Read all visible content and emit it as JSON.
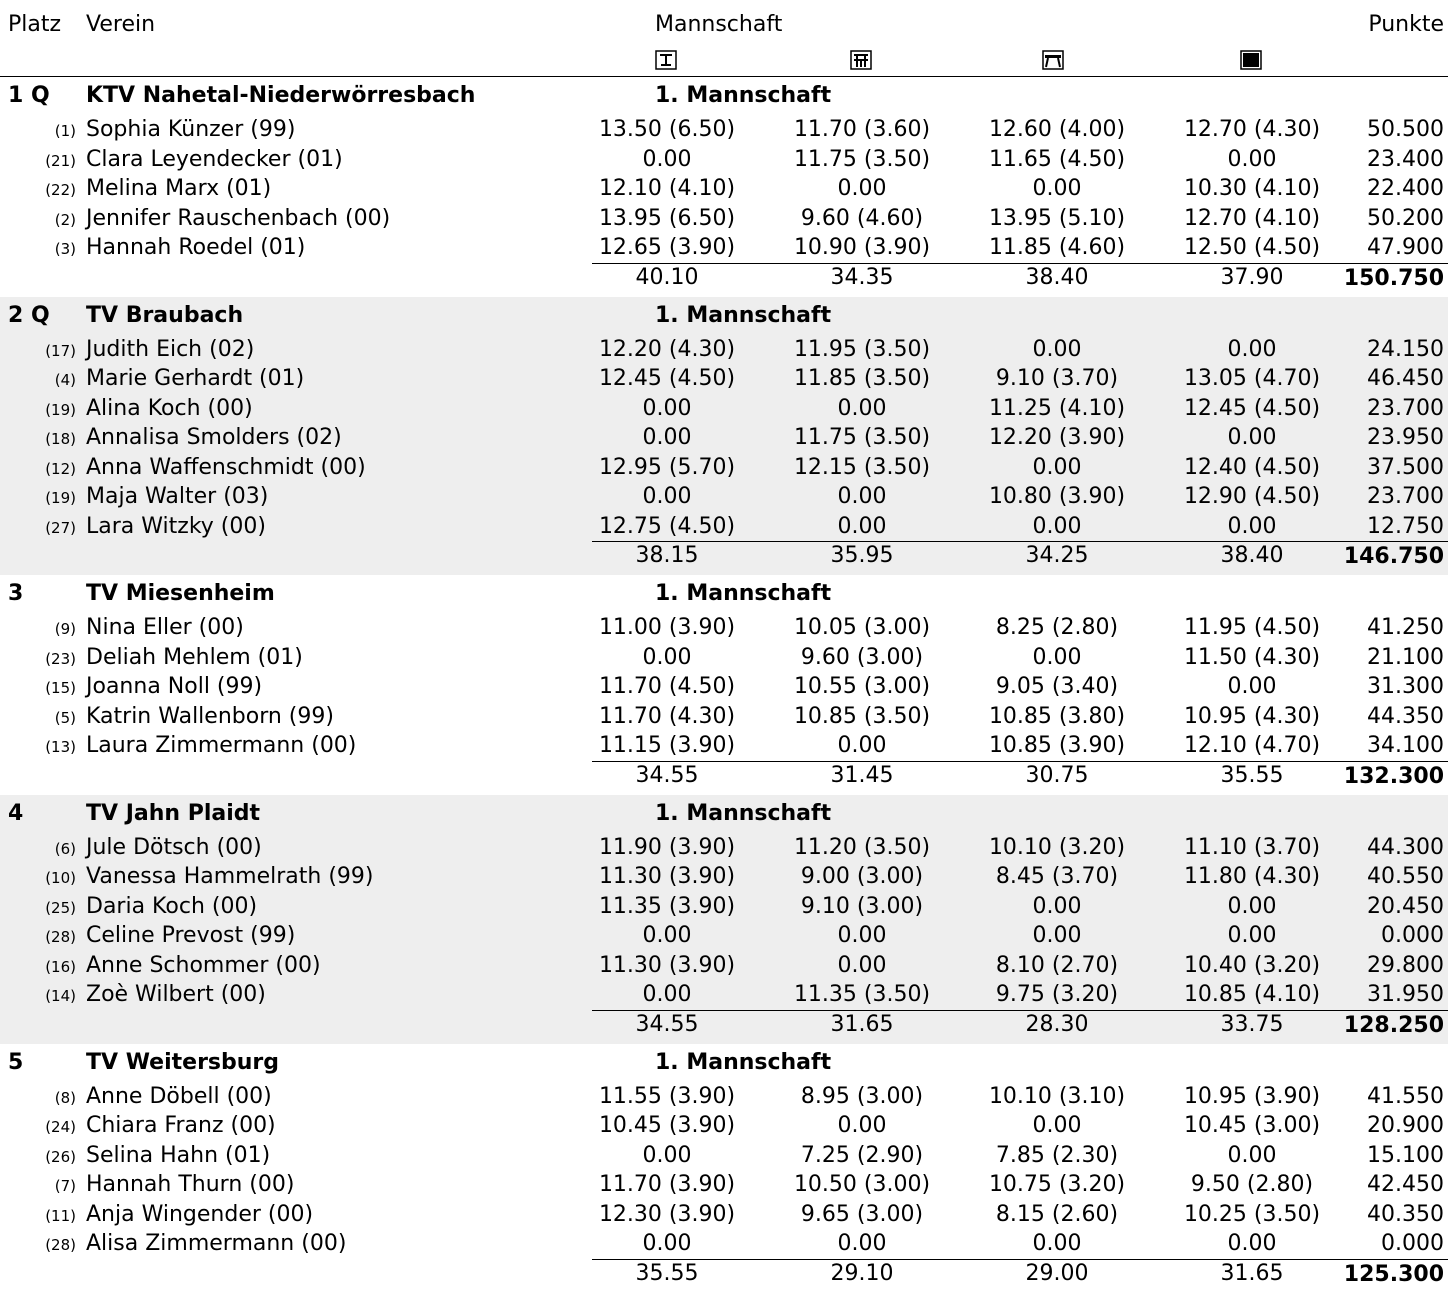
{
  "header": {
    "platz": "Platz",
    "verein": "Verein",
    "mannschaft": "Mannschaft",
    "punkte": "Punkte",
    "apparatus_icons": [
      "vault-icon",
      "uneven-bars-icon",
      "balance-beam-icon",
      "floor-exercise-icon"
    ]
  },
  "teams": [
    {
      "rank": "1 Q",
      "club": "KTV Nahetal-Niederwörresbach",
      "squad": "1. Mannschaft",
      "gymnasts": [
        {
          "num": "(1)",
          "name": "Sophia Künzer (99)",
          "scores": [
            "13.50 (6.50)",
            "11.70 (3.60)",
            "12.60 (4.00)",
            "12.70 (4.30)"
          ],
          "total": "50.500"
        },
        {
          "num": "(21)",
          "name": "Clara Leyendecker (01)",
          "scores": [
            "0.00",
            "11.75 (3.50)",
            "11.65 (4.50)",
            "0.00"
          ],
          "total": "23.400"
        },
        {
          "num": "(22)",
          "name": "Melina Marx (01)",
          "scores": [
            "12.10 (4.10)",
            "0.00",
            "0.00",
            "10.30 (4.10)"
          ],
          "total": "22.400"
        },
        {
          "num": "(2)",
          "name": "Jennifer Rauschenbach (00)",
          "scores": [
            "13.95 (6.50)",
            "9.60 (4.60)",
            "13.95 (5.10)",
            "12.70 (4.10)"
          ],
          "total": "50.200"
        },
        {
          "num": "(3)",
          "name": "Hannah Roedel (01)",
          "scores": [
            "12.65 (3.90)",
            "10.90 (3.90)",
            "11.85 (4.60)",
            "12.50 (4.50)"
          ],
          "total": "47.900"
        }
      ],
      "apparatus_totals": [
        "40.10",
        "34.35",
        "38.40",
        "37.90"
      ],
      "grand_total": "150.750"
    },
    {
      "rank": "2 Q",
      "club": "TV Braubach",
      "squad": "1. Mannschaft",
      "gymnasts": [
        {
          "num": "(17)",
          "name": "Judith Eich (02)",
          "scores": [
            "12.20 (4.30)",
            "11.95 (3.50)",
            "0.00",
            "0.00"
          ],
          "total": "24.150"
        },
        {
          "num": "(4)",
          "name": "Marie Gerhardt (01)",
          "scores": [
            "12.45 (4.50)",
            "11.85 (3.50)",
            "9.10 (3.70)",
            "13.05 (4.70)"
          ],
          "total": "46.450"
        },
        {
          "num": "(19)",
          "name": "Alina Koch (00)",
          "scores": [
            "0.00",
            "0.00",
            "11.25 (4.10)",
            "12.45 (4.50)"
          ],
          "total": "23.700"
        },
        {
          "num": "(18)",
          "name": "Annalisa Smolders (02)",
          "scores": [
            "0.00",
            "11.75 (3.50)",
            "12.20 (3.90)",
            "0.00"
          ],
          "total": "23.950"
        },
        {
          "num": "(12)",
          "name": "Anna Waffenschmidt (00)",
          "scores": [
            "12.95 (5.70)",
            "12.15 (3.50)",
            "0.00",
            "12.40 (4.50)"
          ],
          "total": "37.500"
        },
        {
          "num": "(19)",
          "name": "Maja Walter (03)",
          "scores": [
            "0.00",
            "0.00",
            "10.80 (3.90)",
            "12.90 (4.50)"
          ],
          "total": "23.700"
        },
        {
          "num": "(27)",
          "name": "Lara Witzky (00)",
          "scores": [
            "12.75 (4.50)",
            "0.00",
            "0.00",
            "0.00"
          ],
          "total": "12.750"
        }
      ],
      "apparatus_totals": [
        "38.15",
        "35.95",
        "34.25",
        "38.40"
      ],
      "grand_total": "146.750"
    },
    {
      "rank": "3",
      "club": "TV Miesenheim",
      "squad": "1. Mannschaft",
      "gymnasts": [
        {
          "num": "(9)",
          "name": "Nina Eller (00)",
          "scores": [
            "11.00 (3.90)",
            "10.05 (3.00)",
            "8.25 (2.80)",
            "11.95 (4.50)"
          ],
          "total": "41.250"
        },
        {
          "num": "(23)",
          "name": "Deliah Mehlem (01)",
          "scores": [
            "0.00",
            "9.60 (3.00)",
            "0.00",
            "11.50 (4.30)"
          ],
          "total": "21.100"
        },
        {
          "num": "(15)",
          "name": "Joanna Noll (99)",
          "scores": [
            "11.70 (4.50)",
            "10.55 (3.00)",
            "9.05 (3.40)",
            "0.00"
          ],
          "total": "31.300"
        },
        {
          "num": "(5)",
          "name": "Katrin Wallenborn (99)",
          "scores": [
            "11.70 (4.30)",
            "10.85 (3.50)",
            "10.85 (3.80)",
            "10.95 (4.30)"
          ],
          "total": "44.350"
        },
        {
          "num": "(13)",
          "name": "Laura Zimmermann (00)",
          "scores": [
            "11.15 (3.90)",
            "0.00",
            "10.85 (3.90)",
            "12.10 (4.70)"
          ],
          "total": "34.100"
        }
      ],
      "apparatus_totals": [
        "34.55",
        "31.45",
        "30.75",
        "35.55"
      ],
      "grand_total": "132.300"
    },
    {
      "rank": "4",
      "club": "TV Jahn Plaidt",
      "squad": "1. Mannschaft",
      "gymnasts": [
        {
          "num": "(6)",
          "name": "Jule Dötsch (00)",
          "scores": [
            "11.90 (3.90)",
            "11.20 (3.50)",
            "10.10 (3.20)",
            "11.10 (3.70)"
          ],
          "total": "44.300"
        },
        {
          "num": "(10)",
          "name": "Vanessa Hammelrath (99)",
          "scores": [
            "11.30 (3.90)",
            "9.00 (3.00)",
            "8.45 (3.70)",
            "11.80 (4.30)"
          ],
          "total": "40.550"
        },
        {
          "num": "(25)",
          "name": "Daria Koch (00)",
          "scores": [
            "11.35 (3.90)",
            "9.10 (3.00)",
            "0.00",
            "0.00"
          ],
          "total": "20.450"
        },
        {
          "num": "(28)",
          "name": "Celine Prevost (99)",
          "scores": [
            "0.00",
            "0.00",
            "0.00",
            "0.00"
          ],
          "total": "0.000"
        },
        {
          "num": "(16)",
          "name": "Anne Schommer (00)",
          "scores": [
            "11.30 (3.90)",
            "0.00",
            "8.10 (2.70)",
            "10.40 (3.20)"
          ],
          "total": "29.800"
        },
        {
          "num": "(14)",
          "name": "Zoè Wilbert (00)",
          "scores": [
            "0.00",
            "11.35 (3.50)",
            "9.75 (3.20)",
            "10.85 (4.10)"
          ],
          "total": "31.950"
        }
      ],
      "apparatus_totals": [
        "34.55",
        "31.65",
        "28.30",
        "33.75"
      ],
      "grand_total": "128.250"
    },
    {
      "rank": "5",
      "club": "TV Weitersburg",
      "squad": "1. Mannschaft",
      "gymnasts": [
        {
          "num": "(8)",
          "name": "Anne Döbell (00)",
          "scores": [
            "11.55 (3.90)",
            "8.95 (3.00)",
            "10.10 (3.10)",
            "10.95 (3.90)"
          ],
          "total": "41.550"
        },
        {
          "num": "(24)",
          "name": "Chiara Franz (00)",
          "scores": [
            "10.45 (3.90)",
            "0.00",
            "0.00",
            "10.45 (3.00)"
          ],
          "total": "20.900"
        },
        {
          "num": "(26)",
          "name": "Selina Hahn (01)",
          "scores": [
            "0.00",
            "7.25 (2.90)",
            "7.85 (2.30)",
            "0.00"
          ],
          "total": "15.100"
        },
        {
          "num": "(7)",
          "name": "Hannah Thurn (00)",
          "scores": [
            "11.70 (3.90)",
            "10.50 (3.00)",
            "10.75 (3.20)",
            "9.50 (2.80)"
          ],
          "total": "42.450"
        },
        {
          "num": "(11)",
          "name": "Anja Wingender (00)",
          "scores": [
            "12.30 (3.90)",
            "9.65 (3.00)",
            "8.15 (2.60)",
            "10.25 (3.50)"
          ],
          "total": "40.350"
        },
        {
          "num": "(28)",
          "name": "Alisa Zimmermann (00)",
          "scores": [
            "0.00",
            "0.00",
            "0.00",
            "0.00"
          ],
          "total": "0.000"
        }
      ],
      "apparatus_totals": [
        "35.55",
        "29.10",
        "29.00",
        "31.65"
      ],
      "grand_total": "125.300"
    }
  ]
}
